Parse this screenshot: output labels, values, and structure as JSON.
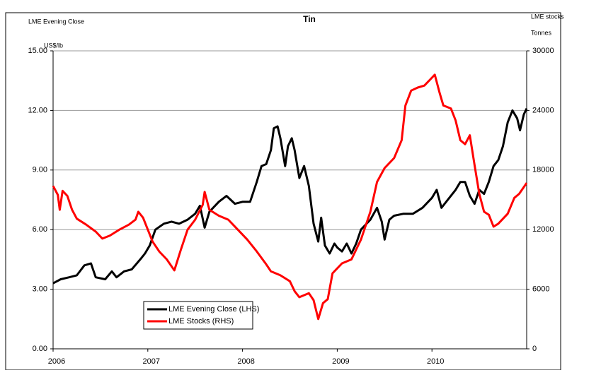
{
  "chart_data": {
    "type": "line",
    "title": "Tin",
    "left_header": "LME Evening Close",
    "right_header": "LME stocks",
    "y_label": "US$/lb",
    "y2_label": "Tonnes",
    "xlim": [
      2006,
      2011
    ],
    "xticks": [
      2006,
      2007,
      2008,
      2009,
      2010
    ],
    "ylim": [
      0,
      15
    ],
    "yticks": [
      {
        "value": 0,
        "label": "0.00"
      },
      {
        "value": 3,
        "label": "3.00"
      },
      {
        "value": 6,
        "label": "6.00"
      },
      {
        "value": 9,
        "label": "9.00"
      },
      {
        "value": 12,
        "label": "12.00"
      },
      {
        "value": 15,
        "label": "15.00"
      }
    ],
    "y2lim": [
      0,
      30000
    ],
    "y2ticks": [
      0,
      6000,
      12000,
      18000,
      24000,
      30000
    ],
    "grid": true,
    "series": [
      {
        "name": "LME Evening Close (LHS)",
        "color": "#000000",
        "x": [
          2006.0,
          2006.08,
          2006.17,
          2006.25,
          2006.33,
          2006.4,
          2006.45,
          2006.55,
          2006.62,
          2006.67,
          2006.75,
          2006.83,
          2006.92,
          2006.97,
          2007.02,
          2007.08,
          2007.17,
          2007.25,
          2007.33,
          2007.42,
          2007.5,
          2007.55,
          2007.6,
          2007.65,
          2007.75,
          2007.83,
          2007.92,
          2008.0,
          2008.08,
          2008.15,
          2008.2,
          2008.25,
          2008.3,
          2008.33,
          2008.37,
          2008.4,
          2008.45,
          2008.48,
          2008.52,
          2008.55,
          2008.6,
          2008.65,
          2008.7,
          2008.75,
          2008.8,
          2008.83,
          2008.87,
          2008.92,
          2008.97,
          2009.0,
          2009.05,
          2009.1,
          2009.15,
          2009.2,
          2009.25,
          2009.35,
          2009.42,
          2009.47,
          2009.5,
          2009.55,
          2009.6,
          2009.7,
          2009.8,
          2009.9,
          2010.0,
          2010.05,
          2010.1,
          2010.15,
          2010.25,
          2010.3,
          2010.35,
          2010.4,
          2010.45,
          2010.5,
          2010.55,
          2010.6,
          2010.65,
          2010.7,
          2010.75,
          2010.8,
          2010.85,
          2010.9,
          2010.93,
          2010.97,
          2011.0
        ],
        "values": [
          3.3,
          3.5,
          3.6,
          3.7,
          4.2,
          4.3,
          3.6,
          3.5,
          3.9,
          3.6,
          3.9,
          4.0,
          4.5,
          4.8,
          5.2,
          6.0,
          6.3,
          6.4,
          6.3,
          6.5,
          6.8,
          7.2,
          6.1,
          6.9,
          7.4,
          7.7,
          7.3,
          7.4,
          7.4,
          8.4,
          9.2,
          9.3,
          10.0,
          11.1,
          11.2,
          10.6,
          9.2,
          10.2,
          10.6,
          10.0,
          8.6,
          9.2,
          8.2,
          6.3,
          5.4,
          6.6,
          5.2,
          4.8,
          5.3,
          5.1,
          4.9,
          5.3,
          4.8,
          5.3,
          6.0,
          6.5,
          7.1,
          6.4,
          5.5,
          6.5,
          6.7,
          6.8,
          6.8,
          7.1,
          7.6,
          8.0,
          7.1,
          7.4,
          8.0,
          8.4,
          8.4,
          7.7,
          7.3,
          8.0,
          7.8,
          8.4,
          9.2,
          9.5,
          10.2,
          11.4,
          12.0,
          11.6,
          11.0,
          11.8,
          12.1
        ]
      },
      {
        "name": "LME Stocks (RHS)",
        "color": "#ff0000",
        "axis": "y2",
        "x": [
          2006.0,
          2006.05,
          2006.07,
          2006.1,
          2006.15,
          2006.2,
          2006.25,
          2006.35,
          2006.45,
          2006.52,
          2006.6,
          2006.7,
          2006.8,
          2006.87,
          2006.9,
          2006.95,
          2007.0,
          2007.05,
          2007.12,
          2007.2,
          2007.28,
          2007.35,
          2007.42,
          2007.5,
          2007.58,
          2007.6,
          2007.65,
          2007.75,
          2007.85,
          2007.95,
          2008.05,
          2008.15,
          2008.25,
          2008.3,
          2008.4,
          2008.5,
          2008.55,
          2008.6,
          2008.7,
          2008.75,
          2008.8,
          2008.85,
          2008.9,
          2008.95,
          2009.05,
          2009.15,
          2009.25,
          2009.35,
          2009.42,
          2009.5,
          2009.6,
          2009.68,
          2009.72,
          2009.78,
          2009.85,
          2009.92,
          2010.0,
          2010.03,
          2010.08,
          2010.12,
          2010.2,
          2010.25,
          2010.3,
          2010.35,
          2010.4,
          2010.45,
          2010.5,
          2010.55,
          2010.6,
          2010.65,
          2010.7,
          2010.8,
          2010.87,
          2010.92,
          2011.0
        ],
        "values": [
          16400,
          15500,
          14000,
          15900,
          15400,
          14000,
          13100,
          12500,
          11800,
          11100,
          11400,
          12000,
          12500,
          13000,
          13800,
          13200,
          12000,
          10800,
          9800,
          9000,
          7900,
          10000,
          12000,
          13000,
          14500,
          15800,
          14000,
          13400,
          13000,
          12000,
          11000,
          9800,
          8500,
          7800,
          7400,
          6800,
          5800,
          5200,
          5600,
          4900,
          3000,
          4600,
          5000,
          7600,
          8600,
          9000,
          11000,
          13800,
          16800,
          18200,
          19200,
          21000,
          24500,
          26000,
          26300,
          26500,
          27300,
          27600,
          25800,
          24500,
          24200,
          23000,
          21000,
          20600,
          21500,
          18500,
          15600,
          13800,
          13500,
          12300,
          12600,
          13600,
          15200,
          15600,
          16700
        ]
      }
    ]
  }
}
